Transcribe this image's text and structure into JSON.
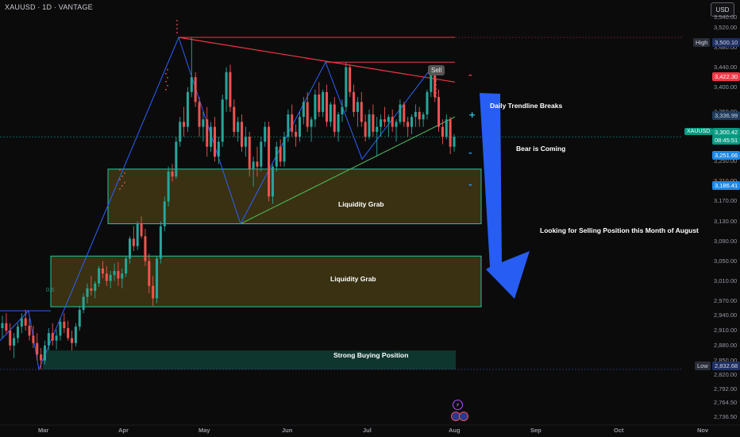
{
  "header": {
    "symbol_title": "XAUUSD · 1D · VANTAGE",
    "currency": "USD"
  },
  "colors": {
    "background": "#0b0b0c",
    "bull_candle": "#26a69a",
    "bear_candle": "#ef5350",
    "zone_fill": "#4a3f14",
    "zone_border": "#1fc7a4",
    "trendline_red": "#f23645",
    "trendline_green": "#4caf50",
    "zigzag_blue": "#2962ff",
    "arrow_blue": "#2962ff"
  },
  "chart_data": {
    "type": "candlestick",
    "symbol": "XAUUSD",
    "interval": "1D",
    "ylim": [
      2720,
      3540
    ],
    "y_ticks": [
      "3,540.00",
      "3,520.00",
      "3,480.00",
      "3,440.00",
      "3,400.00",
      "3,350.00",
      "3,290.00",
      "3,250.00",
      "3,210.00",
      "3,170.00",
      "3,130.00",
      "3,090.00",
      "3,050.00",
      "3,010.00",
      "2,970.00",
      "2,940.00",
      "2,910.00",
      "2,880.00",
      "2,850.00",
      "2,820.00",
      "2,792.00",
      "2,764.50",
      "2,736.50"
    ],
    "x_ticks": [
      "Mar",
      "Apr",
      "May",
      "Jun",
      "Jul",
      "Aug",
      "Sep",
      "Oct",
      "Nov"
    ],
    "candles_ohlc": [
      [
        2915,
        2940,
        2895,
        2925
      ],
      [
        2925,
        2945,
        2905,
        2910
      ],
      [
        2910,
        2925,
        2870,
        2880
      ],
      [
        2880,
        2905,
        2855,
        2895
      ],
      [
        2895,
        2925,
        2885,
        2918
      ],
      [
        2918,
        2945,
        2905,
        2935
      ],
      [
        2935,
        2952,
        2910,
        2920
      ],
      [
        2920,
        2935,
        2890,
        2900
      ],
      [
        2900,
        2920,
        2875,
        2885
      ],
      [
        2885,
        2905,
        2850,
        2862
      ],
      [
        2862,
        2875,
        2832,
        2850
      ],
      [
        2850,
        2890,
        2842,
        2880
      ],
      [
        2880,
        2915,
        2870,
        2905
      ],
      [
        2905,
        2925,
        2880,
        2890
      ],
      [
        2890,
        2912,
        2872,
        2900
      ],
      [
        2900,
        2935,
        2890,
        2928
      ],
      [
        2928,
        2945,
        2905,
        2915
      ],
      [
        2915,
        2930,
        2890,
        2895
      ],
      [
        2895,
        2910,
        2870,
        2885
      ],
      [
        2885,
        2925,
        2878,
        2918
      ],
      [
        2918,
        2960,
        2910,
        2952
      ],
      [
        2952,
        2985,
        2945,
        2978
      ],
      [
        2978,
        3005,
        2965,
        2995
      ],
      [
        2995,
        3020,
        2980,
        2990
      ],
      [
        2990,
        3010,
        2975,
        3005
      ],
      [
        3005,
        3040,
        2998,
        3035
      ],
      [
        3035,
        3050,
        3015,
        3025
      ],
      [
        3025,
        3040,
        3000,
        3010
      ],
      [
        3010,
        3030,
        2995,
        3022
      ],
      [
        3022,
        3045,
        3010,
        3030
      ],
      [
        3030,
        3048,
        3000,
        3015
      ],
      [
        3015,
        3035,
        2995,
        3025
      ],
      [
        3025,
        3060,
        3018,
        3055
      ],
      [
        3055,
        3100,
        3045,
        3095
      ],
      [
        3095,
        3120,
        3070,
        3080
      ],
      [
        3080,
        3130,
        3072,
        3125
      ],
      [
        3125,
        3140,
        3095,
        3100
      ],
      [
        3100,
        3115,
        3040,
        3050
      ],
      [
        3050,
        3065,
        2985,
        3000
      ],
      [
        3000,
        3020,
        2960,
        2975
      ],
      [
        2975,
        3060,
        2965,
        3055
      ],
      [
        3055,
        3130,
        3045,
        3120
      ],
      [
        3120,
        3180,
        3110,
        3170
      ],
      [
        3170,
        3240,
        3160,
        3230
      ],
      [
        3230,
        3245,
        3210,
        3220
      ],
      [
        3220,
        3300,
        3215,
        3290
      ],
      [
        3290,
        3340,
        3280,
        3330
      ],
      [
        3330,
        3360,
        3300,
        3320
      ],
      [
        3320,
        3400,
        3310,
        3390
      ],
      [
        3390,
        3500,
        3380,
        3420
      ],
      [
        3420,
        3430,
        3360,
        3370
      ],
      [
        3370,
        3380,
        3300,
        3320
      ],
      [
        3320,
        3350,
        3290,
        3335
      ],
      [
        3335,
        3360,
        3260,
        3280
      ],
      [
        3280,
        3330,
        3270,
        3320
      ],
      [
        3320,
        3340,
        3250,
        3260
      ],
      [
        3260,
        3300,
        3245,
        3290
      ],
      [
        3290,
        3385,
        3280,
        3375
      ],
      [
        3375,
        3440,
        3350,
        3430
      ],
      [
        3430,
        3445,
        3350,
        3360
      ],
      [
        3360,
        3375,
        3300,
        3310
      ],
      [
        3310,
        3340,
        3290,
        3330
      ],
      [
        3330,
        3345,
        3270,
        3280
      ],
      [
        3280,
        3320,
        3260,
        3300
      ],
      [
        3300,
        3310,
        3220,
        3235
      ],
      [
        3235,
        3260,
        3200,
        3250
      ],
      [
        3250,
        3280,
        3220,
        3240
      ],
      [
        3240,
        3300,
        3230,
        3290
      ],
      [
        3290,
        3330,
        3280,
        3320
      ],
      [
        3320,
        3330,
        3170,
        3180
      ],
      [
        3180,
        3245,
        3165,
        3240
      ],
      [
        3240,
        3290,
        3230,
        3280
      ],
      [
        3280,
        3295,
        3240,
        3250
      ],
      [
        3250,
        3310,
        3240,
        3300
      ],
      [
        3300,
        3355,
        3290,
        3345
      ],
      [
        3345,
        3365,
        3300,
        3310
      ],
      [
        3310,
        3325,
        3280,
        3300
      ],
      [
        3300,
        3350,
        3290,
        3340
      ],
      [
        3340,
        3380,
        3325,
        3370
      ],
      [
        3370,
        3390,
        3310,
        3320
      ],
      [
        3320,
        3340,
        3290,
        3335
      ],
      [
        3335,
        3395,
        3320,
        3385
      ],
      [
        3385,
        3410,
        3340,
        3350
      ],
      [
        3350,
        3395,
        3340,
        3390
      ],
      [
        3390,
        3405,
        3320,
        3330
      ],
      [
        3330,
        3370,
        3320,
        3365
      ],
      [
        3365,
        3380,
        3300,
        3310
      ],
      [
        3310,
        3350,
        3290,
        3345
      ],
      [
        3345,
        3375,
        3330,
        3360
      ],
      [
        3360,
        3450,
        3350,
        3440
      ],
      [
        3440,
        3445,
        3380,
        3390
      ],
      [
        3390,
        3405,
        3340,
        3350
      ],
      [
        3350,
        3380,
        3320,
        3370
      ],
      [
        3370,
        3390,
        3320,
        3330
      ],
      [
        3330,
        3345,
        3290,
        3300
      ],
      [
        3300,
        3355,
        3295,
        3345
      ],
      [
        3345,
        3365,
        3300,
        3310
      ],
      [
        3310,
        3340,
        3260,
        3320
      ],
      [
        3320,
        3345,
        3300,
        3335
      ],
      [
        3335,
        3360,
        3320,
        3330
      ],
      [
        3330,
        3345,
        3300,
        3340
      ],
      [
        3340,
        3355,
        3310,
        3320
      ],
      [
        3320,
        3335,
        3290,
        3330
      ],
      [
        3330,
        3375,
        3325,
        3365
      ],
      [
        3365,
        3370,
        3320,
        3330
      ],
      [
        3330,
        3340,
        3300,
        3320
      ],
      [
        3320,
        3345,
        3305,
        3340
      ],
      [
        3340,
        3365,
        3320,
        3350
      ],
      [
        3350,
        3360,
        3320,
        3335
      ],
      [
        3335,
        3350,
        3320,
        3345
      ],
      [
        3345,
        3395,
        3335,
        3390
      ],
      [
        3390,
        3440,
        3380,
        3430
      ],
      [
        3430,
        3440,
        3370,
        3380
      ],
      [
        3380,
        3395,
        3310,
        3320
      ],
      [
        3320,
        3335,
        3285,
        3300
      ],
      [
        3300,
        3345,
        3295,
        3335
      ],
      [
        3335,
        3340,
        3265,
        3280
      ],
      [
        3280,
        3305,
        3270,
        3300
      ]
    ],
    "high_label": "High",
    "high_value": "3,500.10",
    "low_label": "Low",
    "low_value": "2,832.68",
    "symbol_label": "XAUUSD",
    "last_price": "3,300.42",
    "countdown": "08:45:51",
    "price_tags": {
      "sell_level": "3,422.30",
      "trendline_break": "3,336.99",
      "support_level": "3,251.66",
      "zone_level": "3,186.41"
    },
    "sell_tag": "Sell",
    "zone_labels": [
      "Liquidity Grab",
      "Liquidity Grab",
      "Strong Buying Position"
    ],
    "annotations": {
      "daily_trendline": "Daily Trendline Breaks",
      "bear": "Bear is Coming",
      "looking": "Looking for Selling Position this Month of August"
    },
    "fib_label": "0.5"
  }
}
